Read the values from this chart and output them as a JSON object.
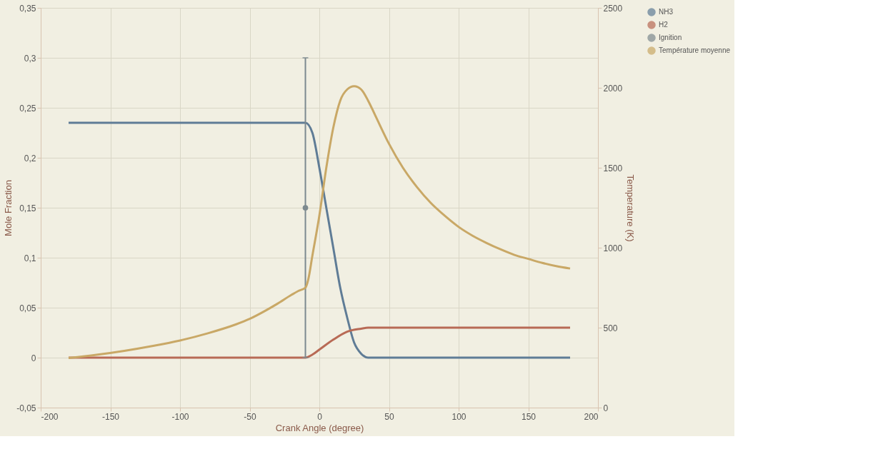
{
  "chart_data": {
    "type": "line",
    "xlabel": "Crank Angle (degree)",
    "ylabel": "Mole Fraction",
    "y2label": "Temperature (K)",
    "xlim": [
      -200,
      200
    ],
    "xticks": [
      -200,
      -150,
      -100,
      -50,
      0,
      50,
      100,
      150,
      200
    ],
    "ylim": [
      -0.05,
      0.35
    ],
    "yticks": [
      {
        "value": -0.05,
        "label": "-0,05"
      },
      0,
      {
        "value": 0.05,
        "label": "0,05"
      },
      {
        "value": 0.1,
        "label": "0,1"
      },
      {
        "value": 0.15,
        "label": "0,15"
      },
      {
        "value": 0.2,
        "label": "0,2"
      },
      {
        "value": 0.25,
        "label": "0,25"
      },
      {
        "value": 0.3,
        "label": "0,3"
      },
      {
        "value": 0.35,
        "label": "0,35"
      }
    ],
    "y2lim": [
      0,
      2500
    ],
    "y2ticks": [
      0,
      500,
      1000,
      1500,
      2000,
      2500
    ],
    "grid": true,
    "legend": "right",
    "series": [
      {
        "name": "NH3",
        "color": "#5f7c96",
        "x": [
          -180,
          -10,
          -5,
          0,
          5,
          10,
          15,
          20,
          25,
          30,
          35,
          180
        ],
        "values": [
          0.235,
          0.235,
          0.225,
          0.19,
          0.15,
          0.11,
          0.07,
          0.04,
          0.015,
          0.004,
          0,
          0
        ]
      },
      {
        "name": "H2",
        "color": "#b86a55",
        "x": [
          -180,
          -10,
          -5,
          0,
          10,
          20,
          30,
          35,
          180
        ],
        "values": [
          0,
          0,
          0.003,
          0.008,
          0.018,
          0.026,
          0.029,
          0.03,
          0.03
        ]
      },
      {
        "name": "Ignition",
        "type": "scatter",
        "marker": "circle",
        "color": "#7d8a8f",
        "x": [
          -10
        ],
        "values": [
          0.15
        ],
        "errors": [
          [
            0,
            0.3
          ]
        ]
      },
      {
        "name": "Température moyenne",
        "color": "#c9a866",
        "axis": "y2",
        "x": [
          -180,
          -160,
          -140,
          -120,
          -100,
          -80,
          -60,
          -50,
          -40,
          -30,
          -20,
          -15,
          -10,
          -8,
          -5,
          0,
          5,
          10,
          15,
          20,
          25,
          30,
          35,
          40,
          50,
          60,
          70,
          80,
          90,
          100,
          110,
          120,
          130,
          140,
          150,
          160,
          170,
          180
        ],
        "values": [
          310,
          330,
          355,
          385,
          420,
          465,
          520,
          555,
          600,
          650,
          705,
          730,
          750,
          800,
          950,
          1200,
          1500,
          1750,
          1920,
          1990,
          2010,
          1990,
          1920,
          1830,
          1650,
          1500,
          1380,
          1280,
          1200,
          1130,
          1075,
          1030,
          990,
          955,
          930,
          905,
          885,
          870
        ]
      }
    ]
  }
}
